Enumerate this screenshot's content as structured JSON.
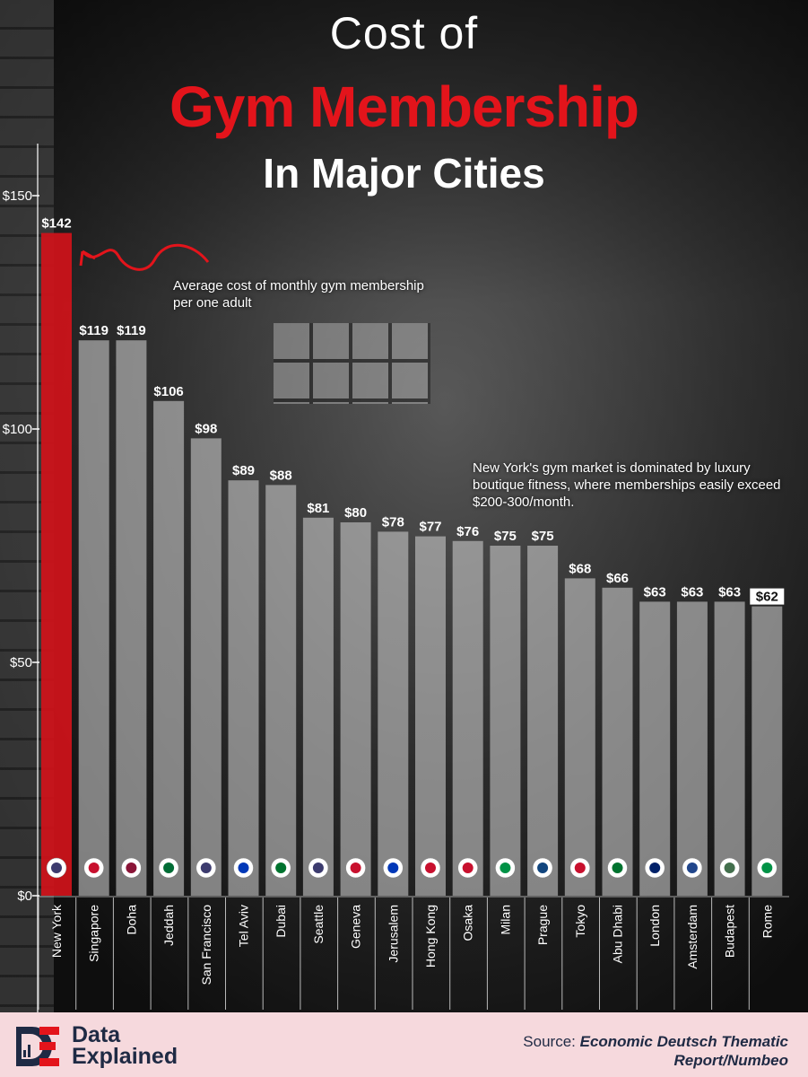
{
  "title": {
    "line1": "Cost of",
    "line2": "Gym Membership",
    "line3": "In Major Cities"
  },
  "annotations": {
    "average_note": "Average cost of monthly gym membership per one adult",
    "ny_note": "New York's gym market is dominated by luxury boutique fitness, where memberships easily exceed $200-300/month."
  },
  "colors": {
    "highlight": "#d0121a",
    "bar": "#c9c9c9",
    "title_red": "#e3141b",
    "footer_bg": "#f6d9dd"
  },
  "chart_data": {
    "type": "bar",
    "title": "Cost of Gym Membership In Major Cities",
    "categories": [
      "New York",
      "Singapore",
      "Doha",
      "Jeddah",
      "San Francisco",
      "Tel Aviv",
      "Dubai",
      "Seattle",
      "Geneva",
      "Jerusalem",
      "Hong Kong",
      "Osaka",
      "Milan",
      "Prague",
      "Tokyo",
      "Abu Dhabi",
      "London",
      "Amsterdam",
      "Budapest",
      "Rome"
    ],
    "values": [
      142,
      119,
      119,
      106,
      98,
      89,
      88,
      81,
      80,
      78,
      77,
      76,
      75,
      75,
      68,
      66,
      63,
      63,
      63,
      62
    ],
    "value_labels": [
      "$142",
      "$119",
      "$119",
      "$106",
      "$98",
      "$89",
      "$88",
      "$81",
      "$80",
      "$78",
      "$77",
      "$76",
      "$75",
      "$75",
      "$68",
      "$66",
      "$63",
      "$63",
      "$63",
      "$62"
    ],
    "flags": [
      "us-flag-icon",
      "singapore-flag-icon",
      "qatar-flag-icon",
      "saudi-flag-icon",
      "us-flag-icon",
      "israel-flag-icon",
      "uae-flag-icon",
      "us-flag-icon",
      "swiss-flag-icon",
      "israel-flag-icon",
      "hong-kong-flag-icon",
      "japan-flag-icon",
      "italy-flag-icon",
      "czech-flag-icon",
      "japan-flag-icon",
      "uae-flag-icon",
      "uk-flag-icon",
      "netherlands-flag-icon",
      "hungary-flag-icon",
      "italy-flag-icon"
    ],
    "highlight_index": 0,
    "yticks": [
      0,
      50,
      100,
      150
    ],
    "ytick_labels": [
      "$0",
      "$50",
      "$100",
      "$150"
    ],
    "ylim": [
      0,
      150
    ],
    "xlabel": "",
    "ylabel": ""
  },
  "footer": {
    "brand_line1": "Data",
    "brand_line2": "Explained",
    "source_label": "Source:",
    "source_text": "Economic Deutsch Thematic Report/Numbeo"
  }
}
